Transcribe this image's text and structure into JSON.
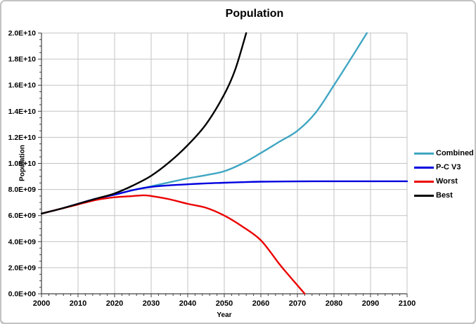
{
  "chart_data": {
    "type": "line",
    "title": "Population",
    "xlabel": "Year",
    "ylabel": "Population",
    "xlim": [
      2000,
      2100
    ],
    "ylim": [
      0,
      20000000000.0
    ],
    "x_tick_step": 10,
    "x_minor_step": 2,
    "y_tick_step": 2000000000.0,
    "y_minor_step": 500000000.0,
    "x_tick_labels": [
      "2000",
      "2010",
      "2020",
      "2030",
      "2040",
      "2050",
      "2060",
      "2070",
      "2080",
      "2090",
      "2100"
    ],
    "y_tick_labels": [
      "0.0E+00",
      "2.0E+09",
      "4.0E+09",
      "6.0E+09",
      "8.0E+09",
      "1.0E+10",
      "1.2E+10",
      "1.4E+10",
      "1.6E+10",
      "1.8E+10",
      "2.0E+10"
    ],
    "grid": true,
    "legend_position": "right",
    "series": [
      {
        "name": "Combined",
        "color": "#40A6C2",
        "x": [
          2000,
          2005,
          2010,
          2015,
          2020,
          2025,
          2030,
          2035,
          2040,
          2045,
          2050,
          2055,
          2060,
          2065,
          2070,
          2075,
          2080,
          2085,
          2089
        ],
        "y": [
          6150000000.0,
          6500000000.0,
          6900000000.0,
          7300000000.0,
          7600000000.0,
          7950000000.0,
          8250000000.0,
          8550000000.0,
          8850000000.0,
          9100000000.0,
          9400000000.0,
          10000000000.0,
          10800000000.0,
          11650000000.0,
          12500000000.0,
          13900000000.0,
          16000000000.0,
          18200000000.0,
          20000000000.0
        ]
      },
      {
        "name": "P-C V3",
        "color": "#0000E0",
        "x": [
          2000,
          2005,
          2010,
          2015,
          2020,
          2025,
          2030,
          2035,
          2040,
          2045,
          2050,
          2055,
          2060,
          2070,
          2080,
          2090,
          2100
        ],
        "y": [
          6150000000.0,
          6500000000.0,
          6900000000.0,
          7300000000.0,
          7600000000.0,
          7950000000.0,
          8200000000.0,
          8320000000.0,
          8400000000.0,
          8470000000.0,
          8520000000.0,
          8560000000.0,
          8600000000.0,
          8620000000.0,
          8630000000.0,
          8630000000.0,
          8630000000.0
        ]
      },
      {
        "name": "Worst",
        "color": "#EB0000",
        "x": [
          2000,
          2005,
          2010,
          2015,
          2020,
          2025,
          2028,
          2030,
          2035,
          2040,
          2045,
          2050,
          2055,
          2060,
          2065,
          2068,
          2070,
          2072
        ],
        "y": [
          6150000000.0,
          6500000000.0,
          6850000000.0,
          7200000000.0,
          7400000000.0,
          7500000000.0,
          7550000000.0,
          7500000000.0,
          7250000000.0,
          6900000000.0,
          6600000000.0,
          6000000000.0,
          5150000000.0,
          4100000000.0,
          2300000000.0,
          1300000000.0,
          650000000.0,
          0
        ]
      },
      {
        "name": "Best",
        "color": "#000000",
        "x": [
          2000,
          2005,
          2010,
          2015,
          2020,
          2025,
          2030,
          2035,
          2040,
          2045,
          2050,
          2053,
          2056
        ],
        "y": [
          6150000000.0,
          6500000000.0,
          6900000000.0,
          7300000000.0,
          7700000000.0,
          8300000000.0,
          9050000000.0,
          10100000000.0,
          11400000000.0,
          13000000000.0,
          15300000000.0,
          17200000000.0,
          20000000000.0
        ]
      }
    ]
  },
  "colors": {
    "grid": "#C3C3C3",
    "axis": "#404040",
    "text": "#000000",
    "frame_border": "#C3C3C3",
    "background": "#FFFFFF"
  }
}
